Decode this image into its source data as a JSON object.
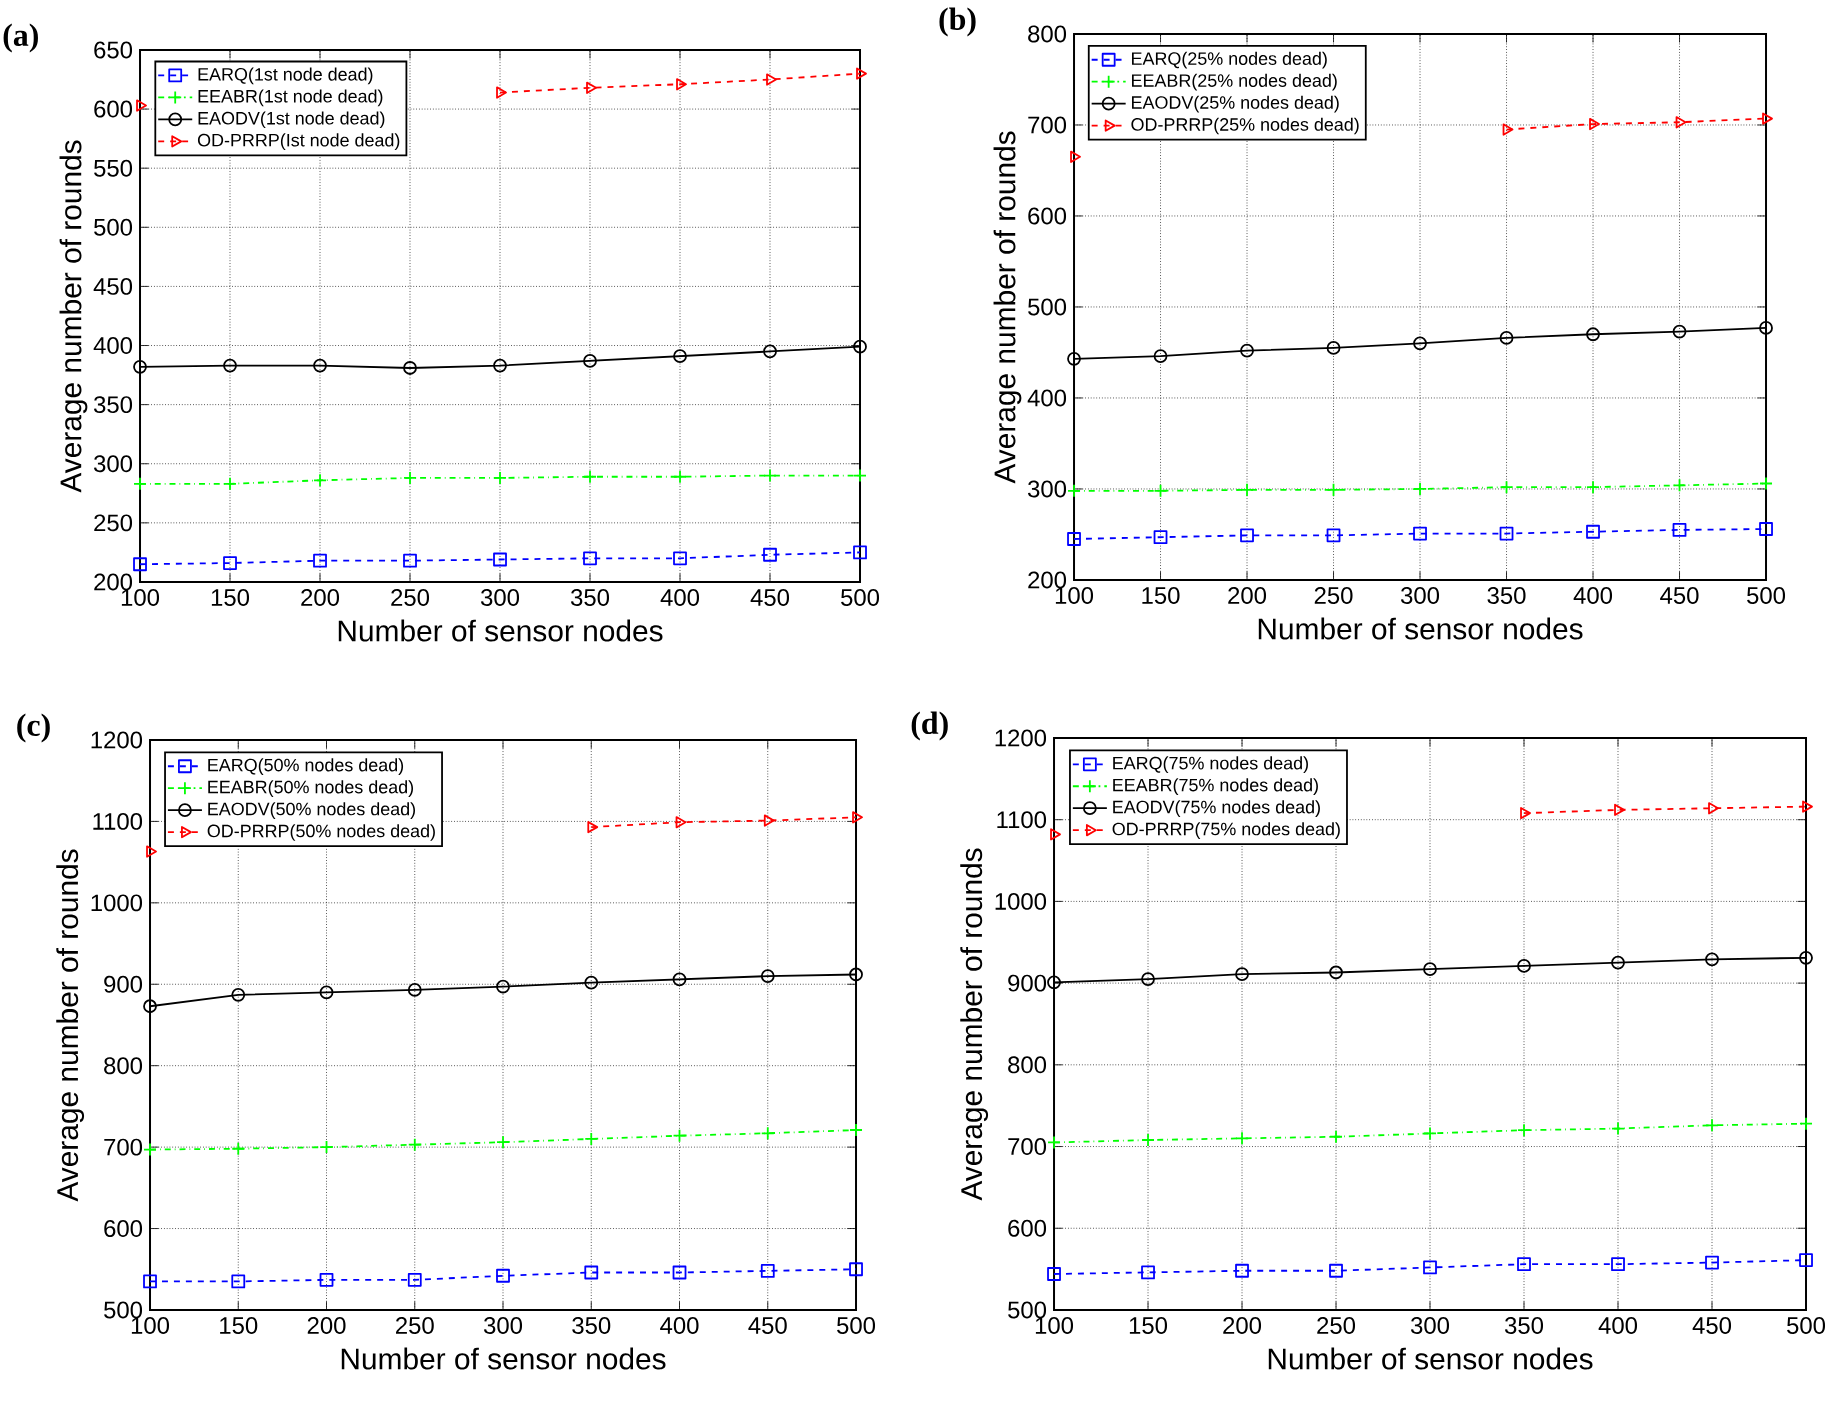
{
  "chart_data": [
    {
      "type": "line",
      "title": "(a)",
      "xlabel": "Number of sensor nodes",
      "ylabel": "Average number of rounds",
      "x": [
        100,
        150,
        200,
        250,
        300,
        350,
        400,
        450,
        500
      ],
      "xlim": [
        100,
        500
      ],
      "ylim": [
        200,
        650
      ],
      "xticks": [
        100,
        150,
        200,
        250,
        300,
        350,
        400,
        450,
        500
      ],
      "yticks": [
        200,
        250,
        300,
        350,
        400,
        450,
        500,
        550,
        600,
        650
      ],
      "grid": true,
      "legend": "top left",
      "series": [
        {
          "name": "EARQ(1st node dead)",
          "color": "#0000ff",
          "marker": "square",
          "line_style": "dashed",
          "values": [
            215,
            216,
            218,
            218,
            219,
            220,
            220,
            223,
            225
          ]
        },
        {
          "name": "EEABR(1st node dead)",
          "color": "#00ff00",
          "marker": "cross",
          "line_style": "dashdot",
          "values": [
            283,
            283,
            286,
            288,
            288,
            289,
            289,
            290,
            290
          ]
        },
        {
          "name": "EAODV(1st node dead)",
          "color": "#000000",
          "marker": "circle",
          "line_style": "solid",
          "values": [
            382,
            383,
            383,
            381,
            383,
            387,
            391,
            395,
            399
          ]
        },
        {
          "name": "OD-PRRP(Ist node dead)",
          "color": "#ff0000",
          "marker": "triangle",
          "line_style": "dashed",
          "values": [
            603,
            null,
            null,
            null,
            614,
            618,
            621,
            625,
            630
          ]
        }
      ]
    },
    {
      "type": "line",
      "title": "(b)",
      "xlabel": "Number of sensor nodes",
      "ylabel": "Average number of rounds",
      "x": [
        100,
        150,
        200,
        250,
        300,
        350,
        400,
        450,
        500
      ],
      "xlim": [
        100,
        500
      ],
      "ylim": [
        200,
        800
      ],
      "xticks": [
        100,
        150,
        200,
        250,
        300,
        350,
        400,
        450,
        500
      ],
      "yticks": [
        200,
        300,
        400,
        500,
        600,
        700,
        800
      ],
      "grid": true,
      "legend": "top left",
      "series": [
        {
          "name": "EARQ(25% nodes dead)",
          "color": "#0000ff",
          "marker": "square",
          "line_style": "dashed",
          "values": [
            245,
            247,
            249,
            249,
            251,
            251,
            253,
            255,
            256
          ]
        },
        {
          "name": "EEABR(25%  nodes dead)",
          "color": "#00ff00",
          "marker": "cross",
          "line_style": "dashdot",
          "values": [
            298,
            298,
            299,
            299,
            300,
            302,
            302,
            304,
            306
          ]
        },
        {
          "name": "EAODV(25% nodes dead)",
          "color": "#000000",
          "marker": "circle",
          "line_style": "solid",
          "values": [
            443,
            446,
            452,
            455,
            460,
            466,
            470,
            473,
            477
          ]
        },
        {
          "name": "OD-PRRP(25% nodes dead)",
          "color": "#ff0000",
          "marker": "triangle",
          "line_style": "dashed",
          "values": [
            665,
            null,
            null,
            null,
            null,
            695,
            701,
            703,
            707
          ]
        }
      ]
    },
    {
      "type": "line",
      "title": "(c)",
      "xlabel": "Number of sensor nodes",
      "ylabel": "Average number of rounds",
      "x": [
        100,
        150,
        200,
        250,
        300,
        350,
        400,
        450,
        500
      ],
      "xlim": [
        100,
        500
      ],
      "ylim": [
        500,
        1200
      ],
      "xticks": [
        100,
        150,
        200,
        250,
        300,
        350,
        400,
        450,
        500
      ],
      "yticks": [
        500,
        600,
        700,
        800,
        900,
        1000,
        1100,
        1200
      ],
      "grid": true,
      "legend": "top left",
      "series": [
        {
          "name": "EARQ(50% nodes dead)",
          "color": "#0000ff",
          "marker": "square",
          "line_style": "dashed",
          "values": [
            535,
            535,
            537,
            537,
            542,
            546,
            546,
            548,
            550
          ]
        },
        {
          "name": "EEABR(50% nodes dead)",
          "color": "#00ff00",
          "marker": "cross",
          "line_style": "dashdot",
          "values": [
            697,
            698,
            700,
            703,
            706,
            710,
            714,
            717,
            721
          ]
        },
        {
          "name": "EAODV(50% nodes dead)",
          "color": "#000000",
          "marker": "circle",
          "line_style": "solid",
          "values": [
            873,
            887,
            890,
            893,
            897,
            902,
            906,
            910,
            912
          ]
        },
        {
          "name": "OD-PRRP(50% nodes dead)",
          "color": "#ff0000",
          "marker": "triangle",
          "line_style": "dashed",
          "values": [
            1063,
            null,
            null,
            null,
            null,
            1093,
            1099,
            1101,
            1105
          ]
        }
      ]
    },
    {
      "type": "line",
      "title": "(d)",
      "xlabel": "Number of sensor nodes",
      "ylabel": "Average number of rounds",
      "x": [
        100,
        150,
        200,
        250,
        300,
        350,
        400,
        450,
        500
      ],
      "xlim": [
        100,
        500
      ],
      "ylim": [
        500,
        1200
      ],
      "xticks": [
        100,
        150,
        200,
        250,
        300,
        350,
        400,
        450,
        500
      ],
      "yticks": [
        500,
        600,
        700,
        800,
        900,
        1000,
        1100,
        1200
      ],
      "grid": true,
      "legend": "top left",
      "series": [
        {
          "name": "EARQ(75% nodes dead)",
          "color": "#0000ff",
          "marker": "square",
          "line_style": "dashed",
          "values": [
            544,
            546,
            548,
            548,
            552,
            556,
            556,
            558,
            561
          ]
        },
        {
          "name": "EEABR(75% nodes dead)",
          "color": "#00ff00",
          "marker": "cross",
          "line_style": "dashdot",
          "values": [
            705,
            708,
            710,
            712,
            716,
            720,
            722,
            726,
            728
          ]
        },
        {
          "name": "EAODV(75% nodes dead)",
          "color": "#000000",
          "marker": "circle",
          "line_style": "solid",
          "values": [
            901,
            905,
            911,
            913,
            917,
            921,
            925,
            929,
            931
          ]
        },
        {
          "name": "OD-PRRP(75% nodes dead)",
          "color": "#ff0000",
          "marker": "triangle",
          "line_style": "dashed",
          "values": [
            1082,
            null,
            null,
            null,
            null,
            1108,
            1112,
            1114,
            1116
          ]
        }
      ]
    }
  ]
}
